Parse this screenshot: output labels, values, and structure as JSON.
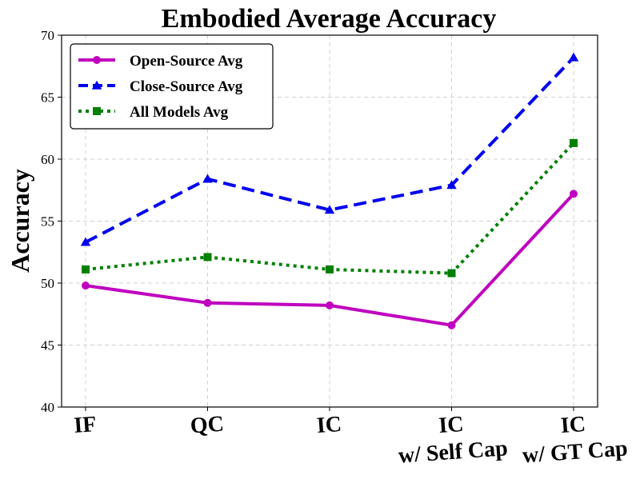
{
  "chart_data": {
    "type": "line",
    "title": "Embodied Average Accuracy",
    "xlabel": "",
    "ylabel": "Accuracy",
    "categories": [
      [
        "IF"
      ],
      [
        "QC"
      ],
      [
        "IC"
      ],
      [
        "IC",
        "w/ Self Cap"
      ],
      [
        "IC",
        "w/ GT Cap"
      ]
    ],
    "ylim": [
      40,
      70
    ],
    "yticks": [
      40,
      45,
      50,
      55,
      60,
      65,
      70
    ],
    "grid": true,
    "legend_position": "top-left",
    "series": [
      {
        "name": "Open-Source Avg",
        "color": "#bf00bf",
        "line_style": "solid",
        "marker": "circle",
        "values": [
          49.8,
          48.4,
          48.2,
          46.6,
          57.2
        ]
      },
      {
        "name": "Close-Source Avg",
        "color": "#0000ee",
        "line_style": "dashed",
        "marker": "triangle",
        "values": [
          53.3,
          58.4,
          55.9,
          57.9,
          68.2
        ]
      },
      {
        "name": "All Models Avg",
        "color": "#008000",
        "line_style": "dotted",
        "marker": "square",
        "values": [
          51.1,
          52.1,
          51.1,
          50.8,
          61.3
        ]
      }
    ]
  }
}
